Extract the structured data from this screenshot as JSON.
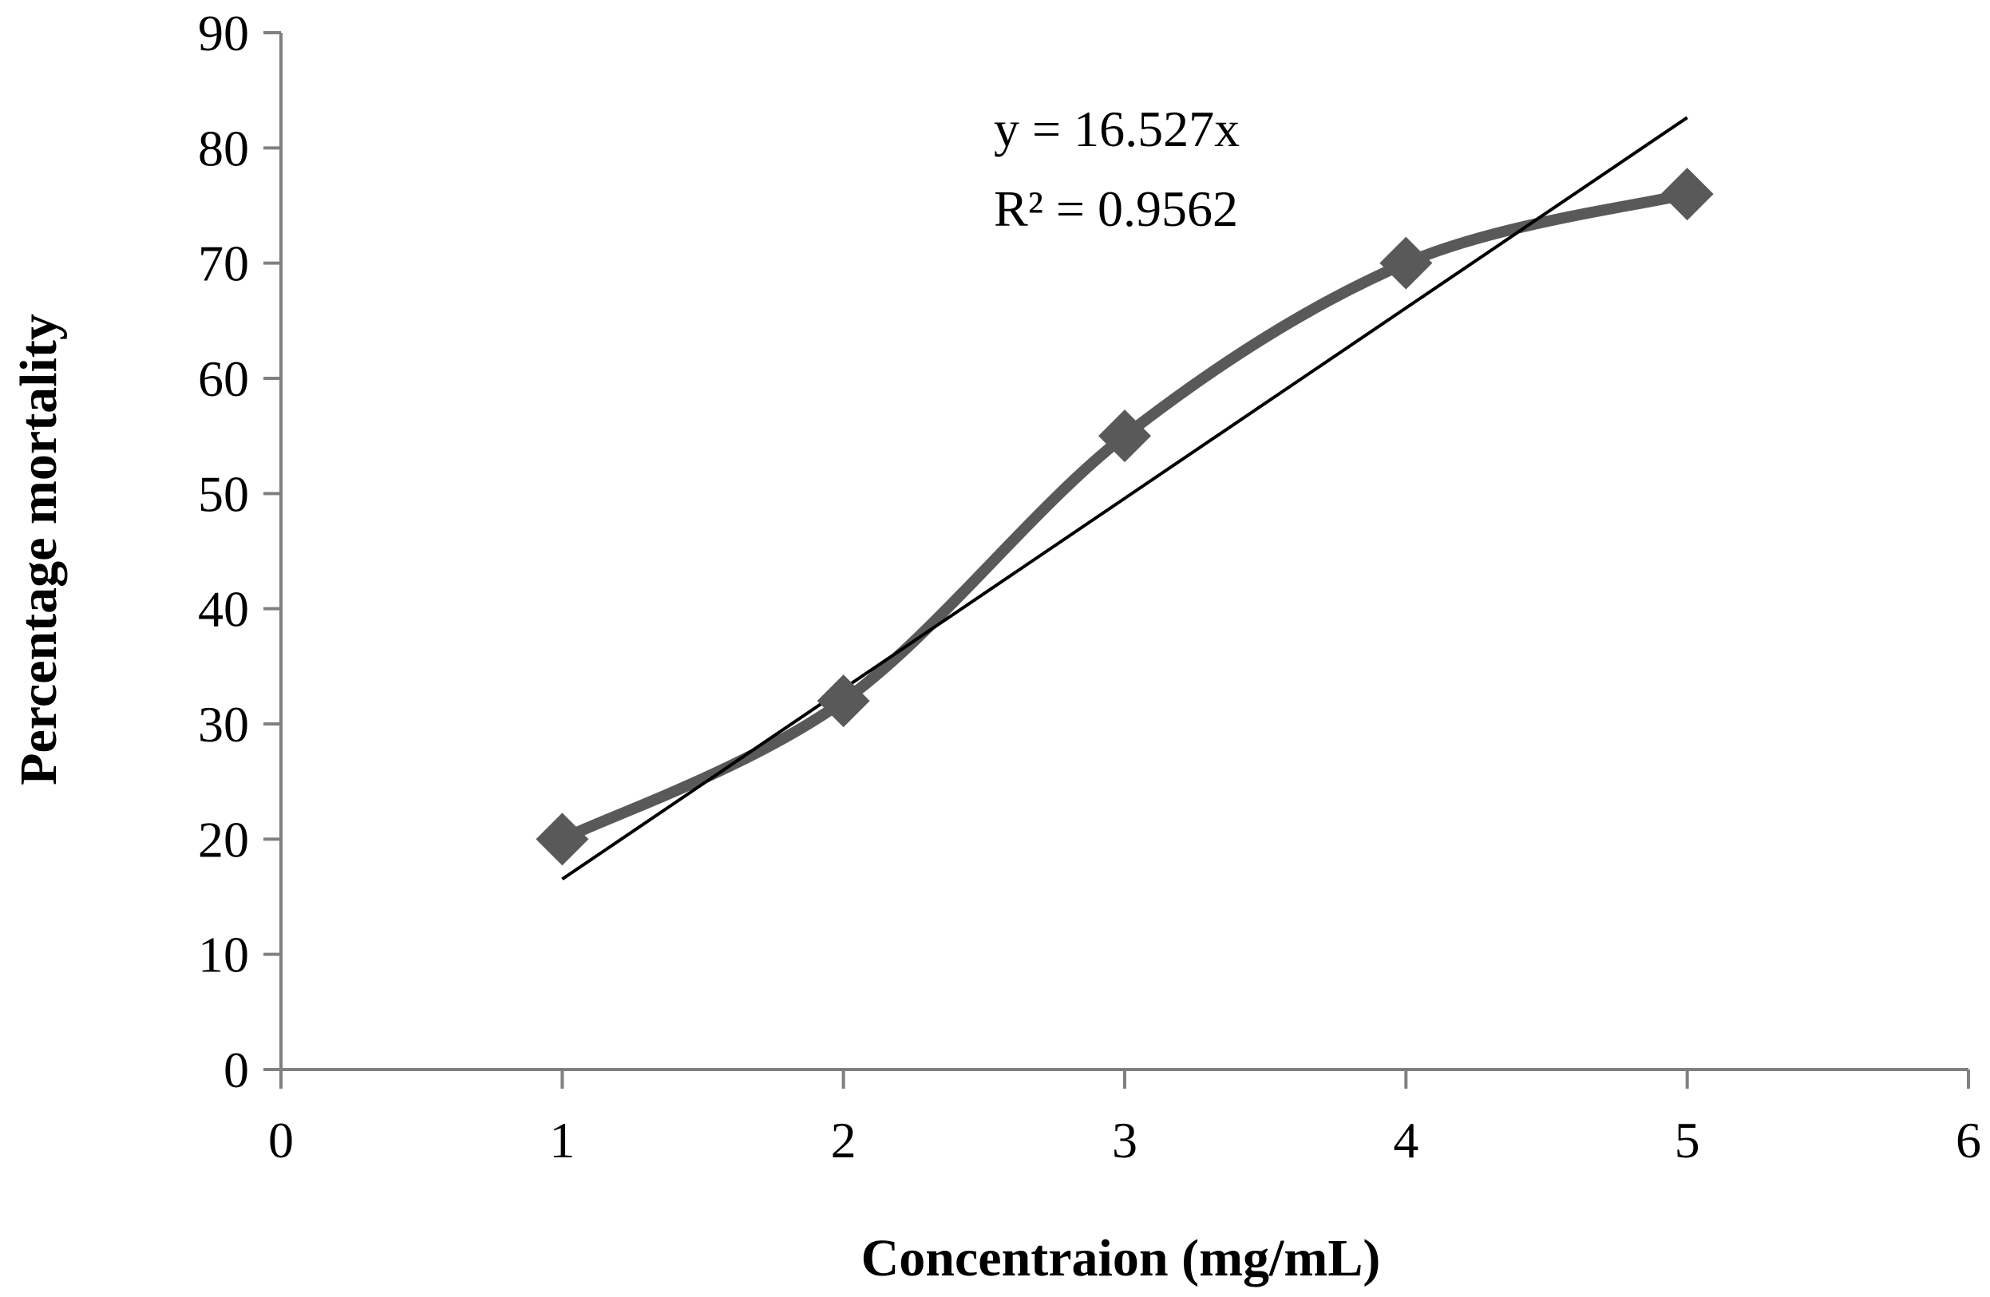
{
  "chart_data": {
    "type": "scatter",
    "xlabel": "Concentraion (mg/mL)",
    "ylabel": "Percentage mortality",
    "xlim": [
      0,
      6
    ],
    "ylim": [
      0,
      90
    ],
    "x_ticks": [
      "0",
      "1",
      "2",
      "3",
      "4",
      "5",
      "6"
    ],
    "y_ticks": [
      "0",
      "10",
      "20",
      "30",
      "40",
      "50",
      "60",
      "70",
      "80",
      "90"
    ],
    "grid": false,
    "legend": "none",
    "series": [
      {
        "x": [
          1,
          2,
          3,
          4,
          5
        ],
        "values": [
          20,
          32,
          55,
          70,
          76
        ],
        "marker": "diamond",
        "line": "smooth",
        "color": "#595959"
      }
    ],
    "trendline": {
      "type": "linear",
      "slope": 16.527,
      "intercept": 0,
      "x_range": [
        1,
        5
      ],
      "color": "#000000"
    },
    "annotations": [
      "y = 16.527x",
      "R² = 0.9562"
    ]
  }
}
